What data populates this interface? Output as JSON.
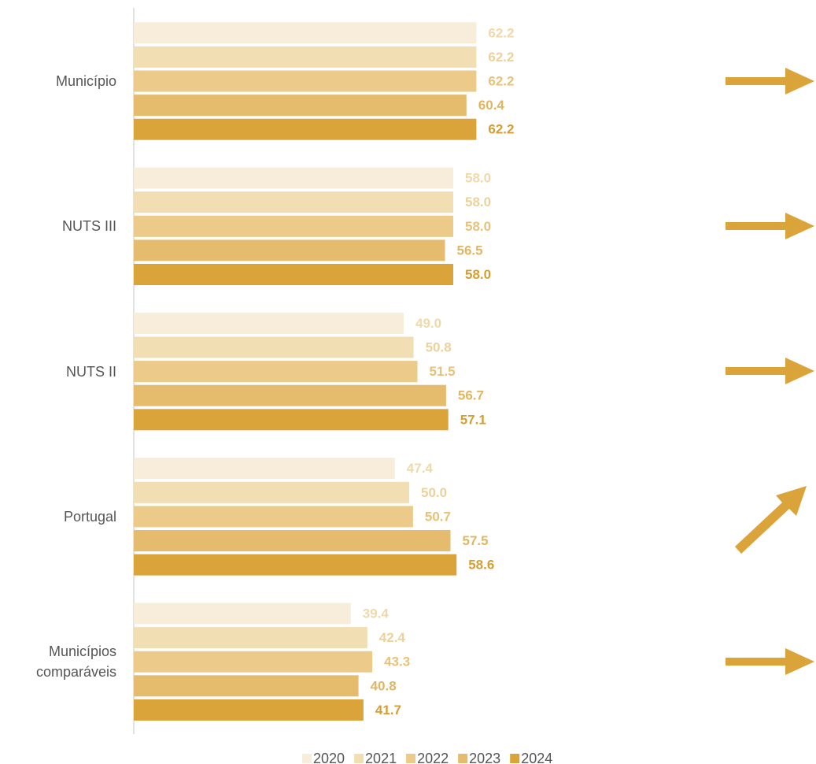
{
  "chart_data": {
    "type": "hbar",
    "categories": [
      "Município",
      "NUTS III",
      "NUTS II",
      "Portugal",
      "Municípios comparáveis"
    ],
    "xlim": [
      0,
      100
    ],
    "series": [
      {
        "name": "2020",
        "color": "#f8edda",
        "label_color": "#efd9a9",
        "values": [
          62.2,
          58.0,
          49.0,
          47.4,
          39.4
        ],
        "value_labels": [
          "62.2",
          "58.0",
          "49.0",
          "47.4",
          "39.4"
        ]
      },
      {
        "name": "2021",
        "color": "#f2deb3",
        "label_color": "#ecd29a",
        "values": [
          62.2,
          58.0,
          50.8,
          50.0,
          42.4
        ],
        "value_labels": [
          "62.2",
          "58.0",
          "50.8",
          "50.0",
          "42.4"
        ]
      },
      {
        "name": "2022",
        "color": "#ebca8a",
        "label_color": "#e6c27a",
        "values": [
          62.2,
          58.0,
          51.5,
          50.7,
          43.3
        ],
        "value_labels": [
          "62.2",
          "58.0",
          "51.5",
          "50.7",
          "43.3"
        ]
      },
      {
        "name": "2023",
        "color": "#e5bc6e",
        "label_color": "#e0b662",
        "values": [
          60.4,
          56.5,
          56.7,
          57.5,
          40.8
        ],
        "value_labels": [
          "60.4",
          "56.5",
          "56.7",
          "57.5",
          "40.8"
        ]
      },
      {
        "name": "2024",
        "color": "#dba43a",
        "label_color": "#d69e30",
        "values": [
          62.2,
          58.0,
          57.1,
          58.6,
          41.7
        ],
        "value_labels": [
          "62.2",
          "58.0",
          "57.1",
          "58.6",
          "41.7"
        ]
      }
    ]
  }
}
